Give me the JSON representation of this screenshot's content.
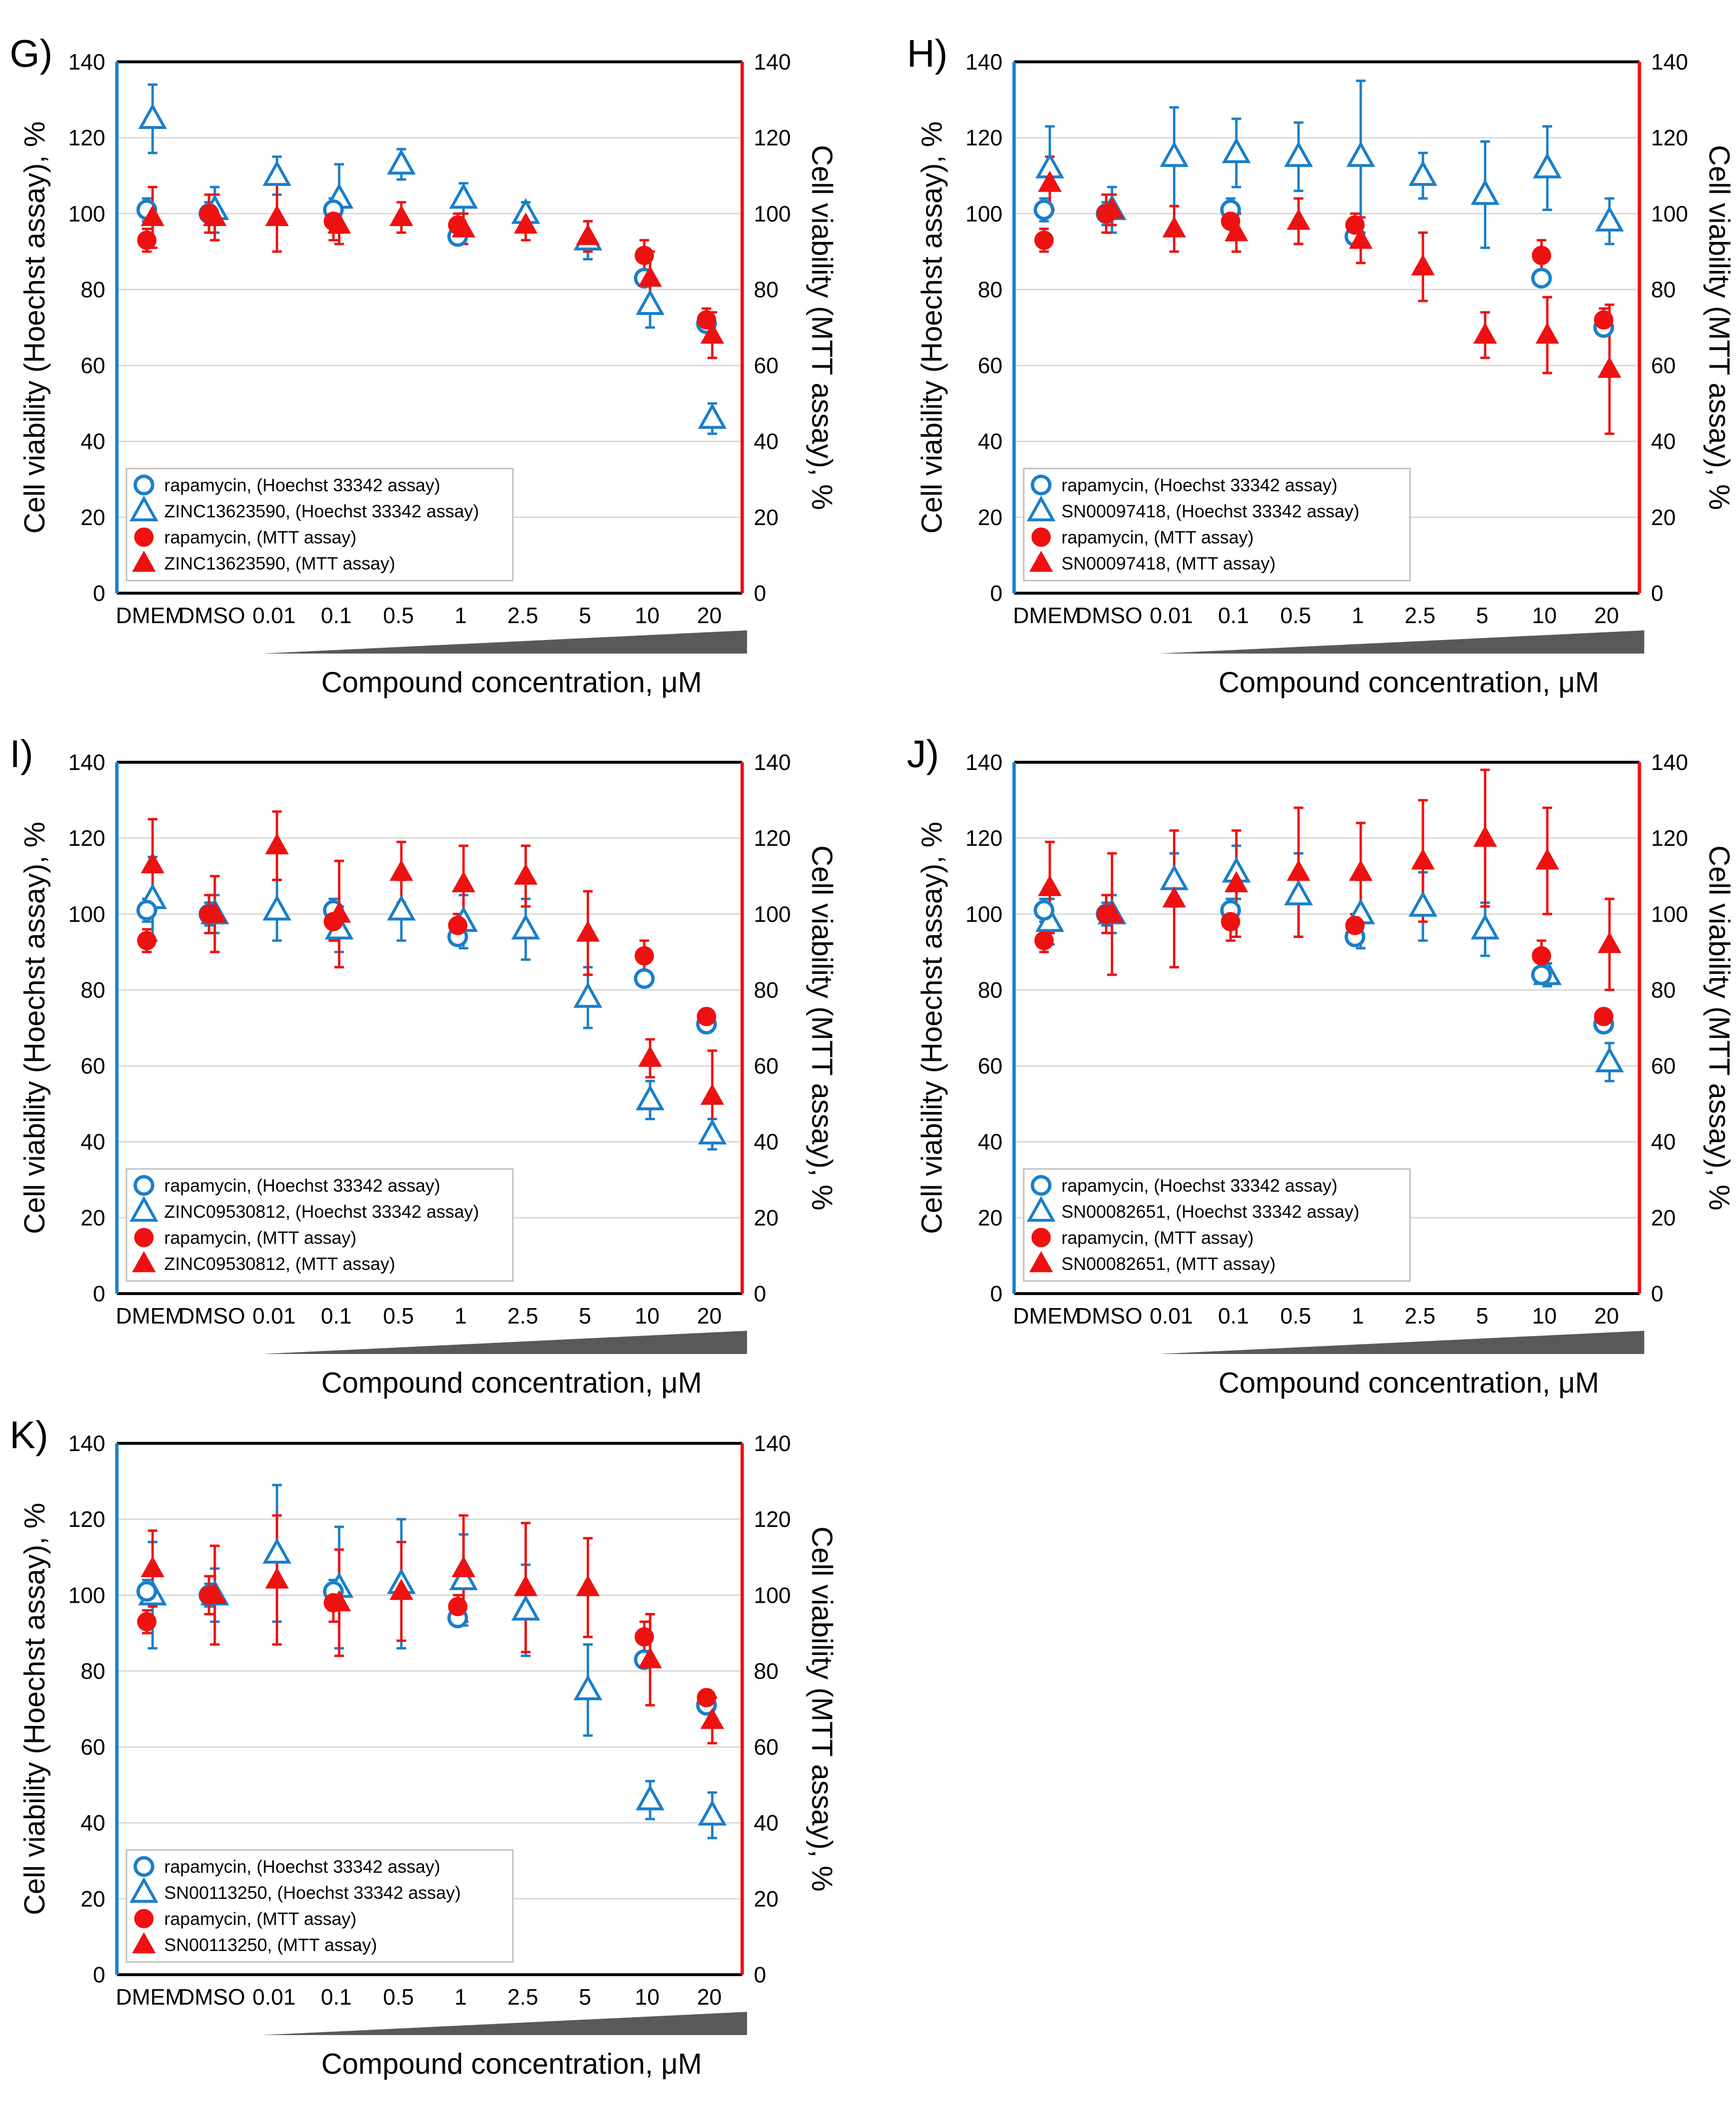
{
  "figure": {
    "categories": [
      "DMEM",
      "DMSO",
      "0.01",
      "0.1",
      "0.5",
      "1",
      "2.5",
      "5",
      "10",
      "20"
    ],
    "xlabel": "Compound concentration, μM",
    "ylabel_left": "Cell viability (Hoechst assay), %",
    "ylabel_right": "Cell viability (MTT assay), %",
    "yticks": [
      "0",
      "20",
      "40",
      "60",
      "80",
      "100",
      "120",
      "140"
    ],
    "colors": {
      "hoechst": "#1a7fc8",
      "mtt": "#ee1111",
      "wedge": "#595959"
    }
  },
  "chart_data": [
    {
      "type": "scatter",
      "label": "G)",
      "title": "",
      "xlabel": "Compound concentration, μM",
      "ylabel": "Cell viability (Hoechst assay), %",
      "ylabel_right": "Cell viability (MTT assay), %",
      "ylim": [
        0,
        140
      ],
      "legend_position": "bottom-left",
      "categories": [
        "DMEM",
        "DMSO",
        "0.01",
        "0.1",
        "0.5",
        "1",
        "2.5",
        "5",
        "10",
        "20"
      ],
      "series": [
        {
          "name": "rapamycin, (Hoechst 33342 assay)",
          "marker": "circle-open",
          "color": "#1a7fc8",
          "values": [
            101,
            100,
            null,
            101,
            null,
            94,
            null,
            null,
            83,
            71
          ],
          "errors": [
            3,
            3,
            null,
            3,
            null,
            2,
            null,
            null,
            2,
            2
          ]
        },
        {
          "name": "ZINC13623590, (Hoechst 33342 assay)",
          "marker": "triangle-open",
          "color": "#1a7fc8",
          "values": [
            125,
            101,
            110,
            104,
            113,
            104,
            100,
            93,
            76,
            46
          ],
          "errors": [
            9,
            6,
            5,
            9,
            4,
            4,
            3,
            5,
            6,
            4
          ]
        },
        {
          "name": "rapamycin, (MTT assay)",
          "marker": "circle-filled",
          "color": "#ee1111",
          "values": [
            93,
            100,
            null,
            98,
            null,
            97,
            null,
            null,
            89,
            72
          ],
          "errors": [
            3,
            5,
            null,
            5,
            null,
            3,
            null,
            null,
            4,
            3
          ]
        },
        {
          "name": "ZINC13623590, (MTT assay)",
          "marker": "triangle-filled",
          "color": "#ee1111",
          "values": [
            99,
            99,
            99,
            97,
            99,
            96,
            97,
            94,
            83,
            68
          ],
          "errors": [
            8,
            6,
            9,
            5,
            4,
            4,
            4,
            4,
            7,
            6
          ]
        }
      ]
    },
    {
      "type": "scatter",
      "label": "H)",
      "title": "",
      "xlabel": "Compound concentration, μM",
      "ylabel": "Cell viability (Hoechst assay), %",
      "ylabel_right": "Cell viability (MTT assay), %",
      "ylim": [
        0,
        140
      ],
      "legend_position": "bottom-left",
      "categories": [
        "DMEM",
        "DMSO",
        "0.01",
        "0.1",
        "0.5",
        "1",
        "2.5",
        "5",
        "10",
        "20"
      ],
      "series": [
        {
          "name": "rapamycin, (Hoechst 33342 assay)",
          "marker": "circle-open",
          "color": "#1a7fc8",
          "values": [
            101,
            100,
            null,
            101,
            null,
            94,
            null,
            null,
            83,
            70
          ],
          "errors": [
            3,
            3,
            null,
            3,
            null,
            2,
            null,
            null,
            2,
            2
          ]
        },
        {
          "name": "SN00097418, (Hoechst 33342 assay)",
          "marker": "triangle-open",
          "color": "#1a7fc8",
          "values": [
            112,
            101,
            115,
            116,
            115,
            115,
            110,
            105,
            112,
            98
          ],
          "errors": [
            11,
            6,
            13,
            9,
            9,
            20,
            6,
            14,
            11,
            6
          ]
        },
        {
          "name": "rapamycin, (MTT assay)",
          "marker": "circle-filled",
          "color": "#ee1111",
          "values": [
            93,
            100,
            null,
            98,
            null,
            97,
            null,
            null,
            89,
            72
          ],
          "errors": [
            3,
            5,
            null,
            5,
            null,
            3,
            null,
            null,
            4,
            3
          ]
        },
        {
          "name": "SN00097418, (MTT assay)",
          "marker": "triangle-filled",
          "color": "#ee1111",
          "values": [
            108,
            101,
            96,
            95,
            98,
            93,
            86,
            68,
            68,
            59
          ],
          "errors": [
            7,
            4,
            6,
            5,
            6,
            6,
            9,
            6,
            10,
            17
          ]
        }
      ]
    },
    {
      "type": "scatter",
      "label": "I)",
      "title": "",
      "xlabel": "Compound concentration, μM",
      "ylabel": "Cell viability (Hoechst assay), %",
      "ylabel_right": "Cell viability (MTT assay), %",
      "ylim": [
        0,
        140
      ],
      "legend_position": "bottom-left",
      "categories": [
        "DMEM",
        "DMSO",
        "0.01",
        "0.1",
        "0.5",
        "1",
        "2.5",
        "5",
        "10",
        "20"
      ],
      "series": [
        {
          "name": "rapamycin, (Hoechst 33342 assay)",
          "marker": "circle-open",
          "color": "#1a7fc8",
          "values": [
            101,
            100,
            null,
            101,
            null,
            94,
            null,
            null,
            83,
            71
          ],
          "errors": [
            3,
            3,
            null,
            3,
            null,
            2,
            null,
            null,
            2,
            2
          ]
        },
        {
          "name": "ZINC09530812, (Hoechst 33342 assay)",
          "marker": "triangle-open",
          "color": "#1a7fc8",
          "values": [
            104,
            100,
            101,
            96,
            101,
            98,
            96,
            78,
            51,
            42
          ],
          "errors": [
            11,
            5,
            8,
            6,
            8,
            7,
            8,
            8,
            5,
            4
          ]
        },
        {
          "name": "rapamycin, (MTT assay)",
          "marker": "circle-filled",
          "color": "#ee1111",
          "values": [
            93,
            100,
            null,
            98,
            null,
            97,
            null,
            null,
            89,
            73
          ],
          "errors": [
            3,
            5,
            null,
            5,
            null,
            3,
            null,
            null,
            4,
            2
          ]
        },
        {
          "name": "ZINC09530812, (MTT assay)",
          "marker": "triangle-filled",
          "color": "#ee1111",
          "values": [
            113,
            100,
            118,
            100,
            111,
            108,
            110,
            95,
            62,
            52
          ],
          "errors": [
            12,
            10,
            9,
            14,
            8,
            10,
            8,
            11,
            5,
            12
          ]
        }
      ]
    },
    {
      "type": "scatter",
      "label": "J)",
      "title": "",
      "xlabel": "Compound concentration, μM",
      "ylabel": "Cell viability (Hoechst assay), %",
      "ylabel_right": "Cell viability (MTT assay), %",
      "ylim": [
        0,
        140
      ],
      "legend_position": "bottom-left",
      "categories": [
        "DMEM",
        "DMSO",
        "0.01",
        "0.1",
        "0.5",
        "1",
        "2.5",
        "5",
        "10",
        "20"
      ],
      "series": [
        {
          "name": "rapamycin, (Hoechst 33342 assay)",
          "marker": "circle-open",
          "color": "#1a7fc8",
          "values": [
            101,
            100,
            null,
            101,
            null,
            94,
            null,
            null,
            84,
            71
          ],
          "errors": [
            3,
            3,
            null,
            3,
            null,
            2,
            null,
            null,
            2,
            2
          ]
        },
        {
          "name": "SN00082651, (Hoechst 33342 assay)",
          "marker": "triangle-open",
          "color": "#1a7fc8",
          "values": [
            98,
            100,
            109,
            111,
            105,
            100,
            102,
            96,
            84,
            61
          ],
          "errors": [
            6,
            5,
            7,
            7,
            11,
            9,
            9,
            7,
            3,
            5
          ]
        },
        {
          "name": "rapamycin, (MTT assay)",
          "marker": "circle-filled",
          "color": "#ee1111",
          "values": [
            93,
            100,
            null,
            98,
            null,
            97,
            null,
            null,
            89,
            73
          ],
          "errors": [
            3,
            5,
            null,
            5,
            null,
            3,
            null,
            null,
            4,
            2
          ]
        },
        {
          "name": "SN00082651, (MTT assay)",
          "marker": "triangle-filled",
          "color": "#ee1111",
          "values": [
            107,
            100,
            104,
            108,
            111,
            111,
            114,
            120,
            114,
            92
          ],
          "errors": [
            12,
            16,
            18,
            14,
            17,
            13,
            16,
            18,
            14,
            12
          ]
        }
      ]
    },
    {
      "type": "scatter",
      "label": "K)",
      "title": "",
      "xlabel": "Compound concentration, μM",
      "ylabel": "Cell viability (Hoechst assay), %",
      "ylabel_right": "Cell viability (MTT assay), %",
      "ylim": [
        0,
        140
      ],
      "legend_position": "bottom-left",
      "categories": [
        "DMEM",
        "DMSO",
        "0.01",
        "0.1",
        "0.5",
        "1",
        "2.5",
        "5",
        "10",
        "20"
      ],
      "series": [
        {
          "name": "rapamycin, (Hoechst 33342 assay)",
          "marker": "circle-open",
          "color": "#1a7fc8",
          "values": [
            101,
            100,
            null,
            101,
            null,
            94,
            null,
            null,
            83,
            71
          ],
          "errors": [
            3,
            3,
            null,
            3,
            null,
            2,
            null,
            null,
            2,
            2
          ]
        },
        {
          "name": "SN00113250, (Hoechst 33342 assay)",
          "marker": "triangle-open",
          "color": "#1a7fc8",
          "values": [
            100,
            100,
            111,
            102,
            103,
            104,
            96,
            75,
            46,
            42
          ],
          "errors": [
            14,
            7,
            18,
            16,
            17,
            12,
            12,
            12,
            5,
            6
          ]
        },
        {
          "name": "rapamycin, (MTT assay)",
          "marker": "circle-filled",
          "color": "#ee1111",
          "values": [
            93,
            100,
            null,
            98,
            null,
            97,
            null,
            null,
            89,
            73
          ],
          "errors": [
            3,
            5,
            null,
            5,
            null,
            3,
            null,
            null,
            4,
            2
          ]
        },
        {
          "name": "SN00113250, (MTT assay)",
          "marker": "triangle-filled",
          "color": "#ee1111",
          "values": [
            107,
            100,
            104,
            98,
            101,
            107,
            102,
            102,
            83,
            67
          ],
          "errors": [
            10,
            13,
            17,
            14,
            13,
            14,
            17,
            13,
            12,
            6
          ]
        }
      ]
    }
  ]
}
